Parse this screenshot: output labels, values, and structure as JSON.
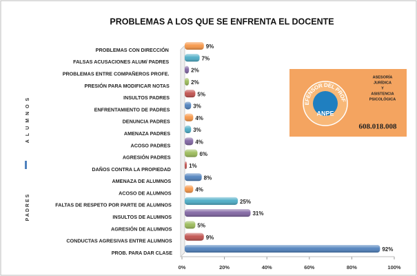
{
  "chart_data": {
    "type": "hbar",
    "title": "PROBLEMAS A LOS QUE SE ENFRENTA EL DOCENTE",
    "categories": [
      "PROBLEMAS CON DIRECCIÓN",
      "FALSAS ACUSACIONES ALUM/ PADRES",
      "PROBLEMAS ENTRE COMPAÑEROS PROFE.",
      "PRESIÓN PARA MODIFICAR NOTAS",
      "INSULTOS PADRES",
      "ENFRENTAMIENTO DE PADRES",
      "DENUNCIA PADRES",
      "AMENAZA PADRES",
      "ACOSO PADRES",
      "AGRESIÓN PADRES",
      "DAÑOS CONTRA LA PROPIEDAD",
      "AMENAZA DE ALUMNOS",
      "ACOSO DE ALUMNOS",
      "FALTAS DE RESPETO POR PARTE DE ALUMNOS",
      "INSULTOS DE ALUMNOS",
      "AGRESIÓN DE ALUMNOS",
      "CONDUCTAS AGRESIVAS ENTRE ALUMNOS",
      "PROB. PARA DAR CLASE"
    ],
    "values": [
      9,
      7,
      2,
      2,
      5,
      3,
      4,
      3,
      4,
      6,
      1,
      8,
      4,
      25,
      31,
      5,
      9,
      92
    ],
    "value_labels": [
      "9%",
      "7%",
      "2%",
      "2%",
      "5%",
      "3%",
      "4%",
      "3%",
      "4%",
      "6%",
      "1%",
      "8%",
      "4%",
      "25%",
      "31%",
      "5%",
      "9%",
      "92%"
    ],
    "colors": [
      "#f79646",
      "#4bacc6",
      "#8064a2",
      "#9bbb59",
      "#c0504d",
      "#4f81bd",
      "#f79646",
      "#4bacc6",
      "#8064a2",
      "#9bbb59",
      "#c0504d",
      "#4f81bd",
      "#f79646",
      "#4bacc6",
      "#8064a2",
      "#9bbb59",
      "#c0504d",
      "#4f81bd"
    ],
    "xlim": [
      0,
      100
    ],
    "xticks": [
      {
        "value": 0,
        "label": "0%"
      },
      {
        "value": 20,
        "label": "20%"
      },
      {
        "value": 40,
        "label": "40%"
      },
      {
        "value": 60,
        "label": "60%"
      },
      {
        "value": 80,
        "label": "80%"
      },
      {
        "value": 100,
        "label": "100%"
      }
    ],
    "group_labels": [
      "PADRES",
      "ALUMNOS"
    ]
  },
  "logo": {
    "arc_text": "EL DEFENSOR DEL PROFESOR",
    "name": "ANPE",
    "phone": "608.018.008",
    "services": [
      "ASESORÍA",
      "JURÍDICA",
      "Y",
      "ASISTENCIA",
      "PSICOLÓGICA"
    ]
  }
}
